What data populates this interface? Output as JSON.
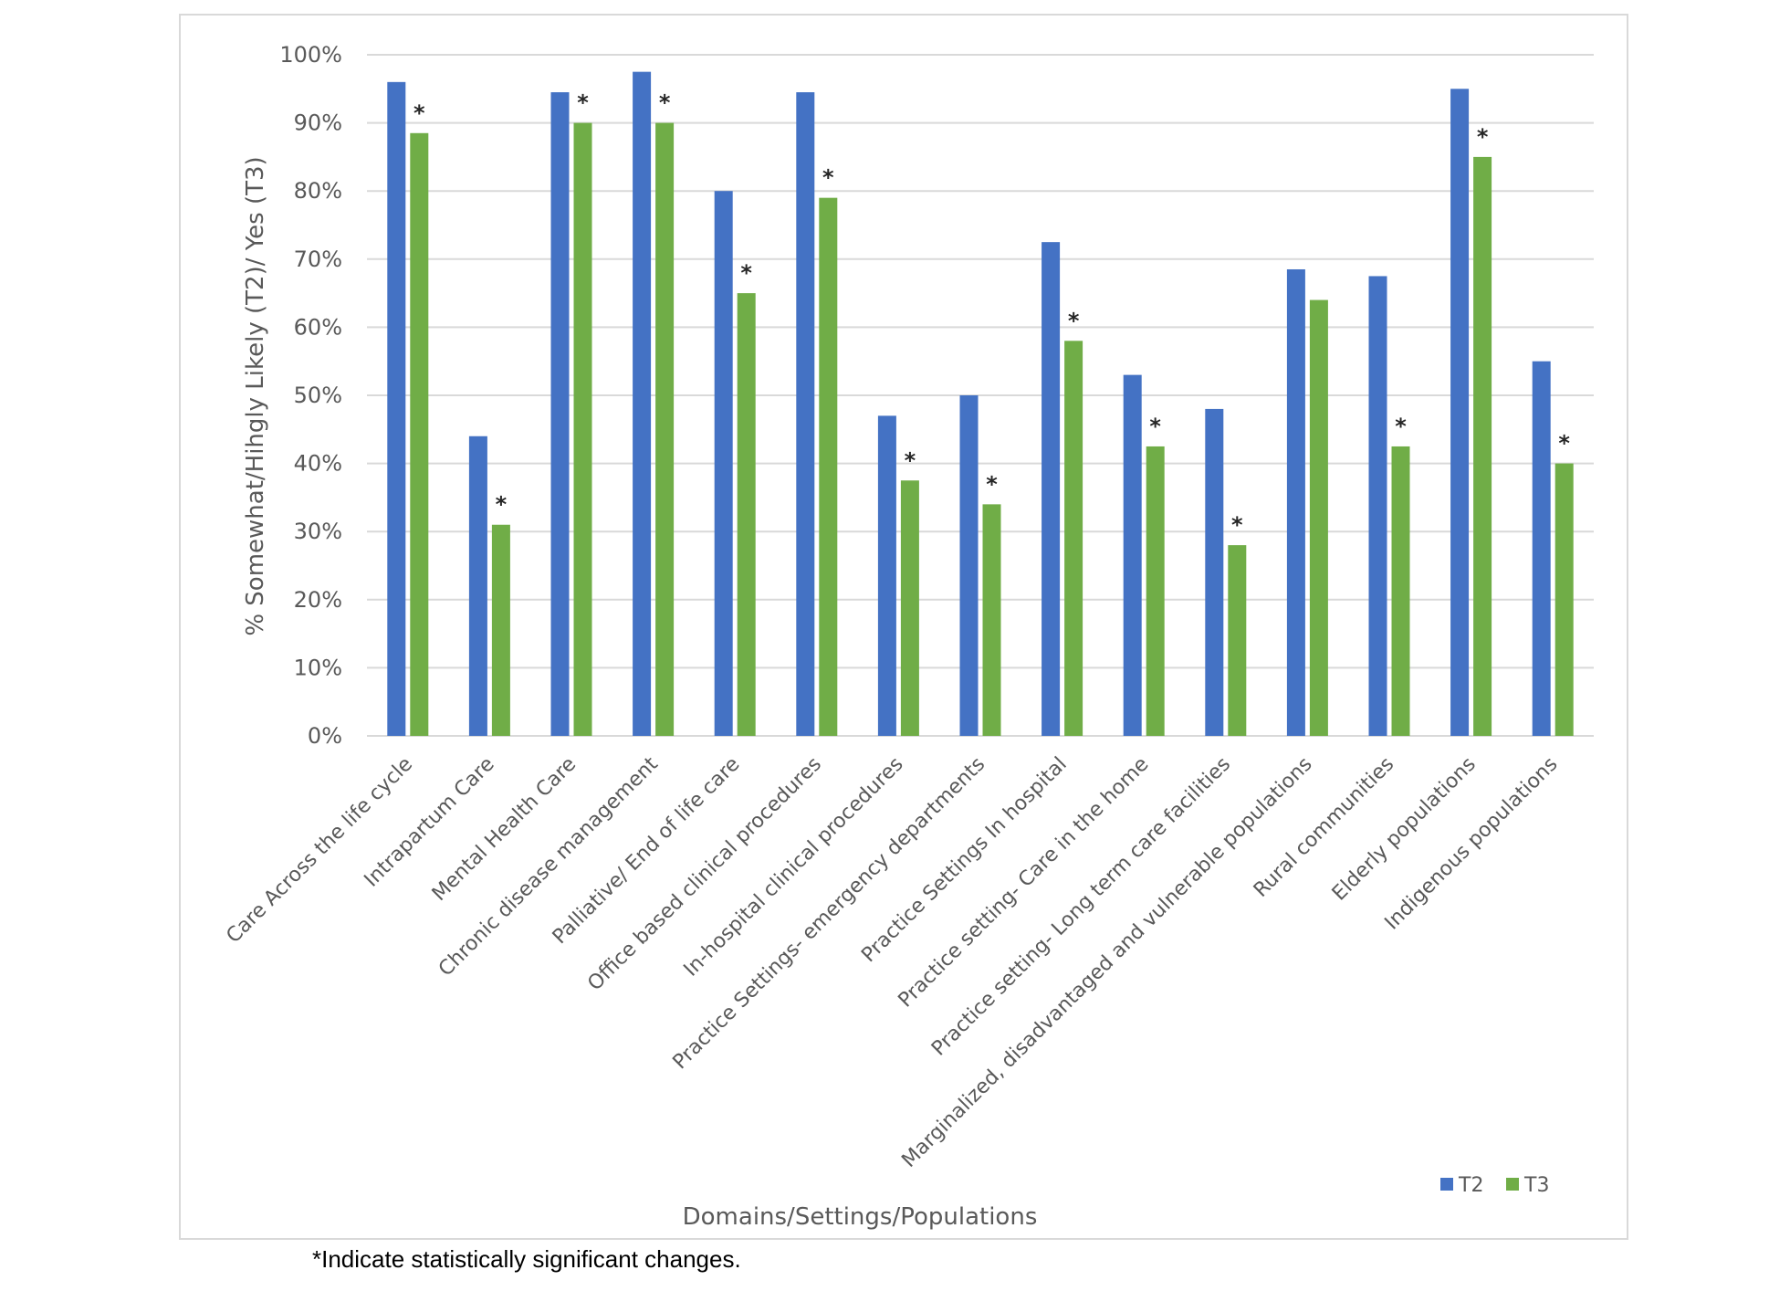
{
  "chart_data": {
    "type": "bar",
    "title": "",
    "xlabel": "Domains/Settings/Populations",
    "ylabel": "% Somewhat/Hihgly Likely (T2)/ Yes (T3)",
    "ylim": [
      0,
      100
    ],
    "yticks": [
      "0%",
      "10%",
      "20%",
      "30%",
      "40%",
      "50%",
      "60%",
      "70%",
      "80%",
      "90%",
      "100%"
    ],
    "grid": true,
    "legend_placement": "bottom-right",
    "categories": [
      "Care Across the life cycle",
      "Intrapartum Care",
      "Mental Health Care",
      "Chronic disease management",
      "Palliative/ End of life care",
      "Office based clinical procedures",
      "In-hospital clinical procedures",
      "Practice Settings- emergency departments",
      "Practice Settings In hospital",
      "Practice setting- Care in the home",
      "Practice setting- Long term care facilities",
      "Marginalized, disadvantaged and vulnerable populations",
      "Rural communities",
      "Elderly populations",
      "Indigenous populations"
    ],
    "series": [
      {
        "name": "T2",
        "color": "#4472c4",
        "values": [
          96,
          44,
          94.5,
          97.5,
          80,
          94.5,
          47,
          50,
          72.5,
          53,
          48,
          68.5,
          67.5,
          95,
          55
        ]
      },
      {
        "name": "T3",
        "color": "#70ad47",
        "values": [
          88.5,
          31,
          90,
          90,
          65,
          79,
          37.5,
          34,
          58,
          42.5,
          28,
          64,
          42.5,
          85,
          40
        ]
      }
    ],
    "significant": [
      true,
      true,
      true,
      true,
      true,
      true,
      true,
      true,
      true,
      true,
      true,
      false,
      true,
      true,
      true
    ],
    "significance_marker": "*"
  },
  "footnote": "*Indicate statistically significant changes."
}
